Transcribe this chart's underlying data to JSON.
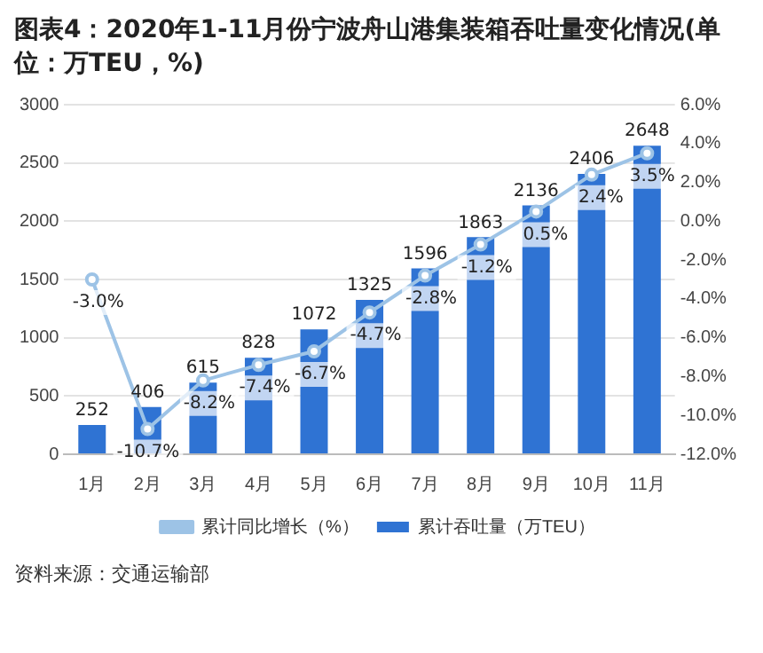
{
  "chart_data": {
    "type": "bar",
    "title": "图表4：2020年1-11月份宁波舟山港集装箱吞吐量变化情况(单位：万TEU，%)",
    "categories": [
      "1月",
      "2月",
      "3月",
      "4月",
      "5月",
      "6月",
      "7月",
      "8月",
      "9月",
      "10月",
      "11月"
    ],
    "series": [
      {
        "name": "累计吞吐量（万TEU）",
        "color": "#2f73d3",
        "values": [
          252,
          406,
          615,
          828,
          1072,
          1325,
          1596,
          1863,
          2136,
          2406,
          2648
        ],
        "value_labels": [
          "252",
          "406",
          "615",
          "828",
          "1072",
          "1325",
          "1596",
          "1863",
          "2136",
          "2406",
          "2648"
        ]
      },
      {
        "name": "累计同比增长（%）",
        "type": "line",
        "axis": "y2",
        "color": "#9dc3e6",
        "marker": "circle",
        "values": [
          -3.0,
          -10.7,
          -8.2,
          -7.4,
          -6.7,
          -4.7,
          -2.8,
          -1.2,
          0.5,
          2.4,
          3.5
        ],
        "value_labels": [
          "-3.0%",
          "-10.7%",
          "-8.2%",
          "-7.4%",
          "-6.7%",
          "-4.7%",
          "-2.8%",
          "-1.2%",
          "0.5%",
          "2.4%",
          "3.5%"
        ]
      }
    ],
    "ylim": [
      0,
      3000
    ],
    "yticks": [
      0,
      500,
      1000,
      1500,
      2000,
      2500,
      3000
    ],
    "y2lim": [
      -12,
      6
    ],
    "y2ticks": [
      {
        "value": -12,
        "label": "-12.0%"
      },
      {
        "value": -10,
        "label": "-10.0%"
      },
      {
        "value": -8,
        "label": "-8.0%"
      },
      {
        "value": -6,
        "label": "-6.0%"
      },
      {
        "value": -4,
        "label": "-4.0%"
      },
      {
        "value": -2,
        "label": "-2.0%"
      },
      {
        "value": 0,
        "label": "0.0%"
      },
      {
        "value": 2,
        "label": "2.0%"
      },
      {
        "value": 4,
        "label": "4.0%"
      },
      {
        "value": 6,
        "label": "6.0%"
      }
    ],
    "grid": "y",
    "legend": "bottom",
    "annotations": [
      "资料来源：交通运输部"
    ]
  }
}
